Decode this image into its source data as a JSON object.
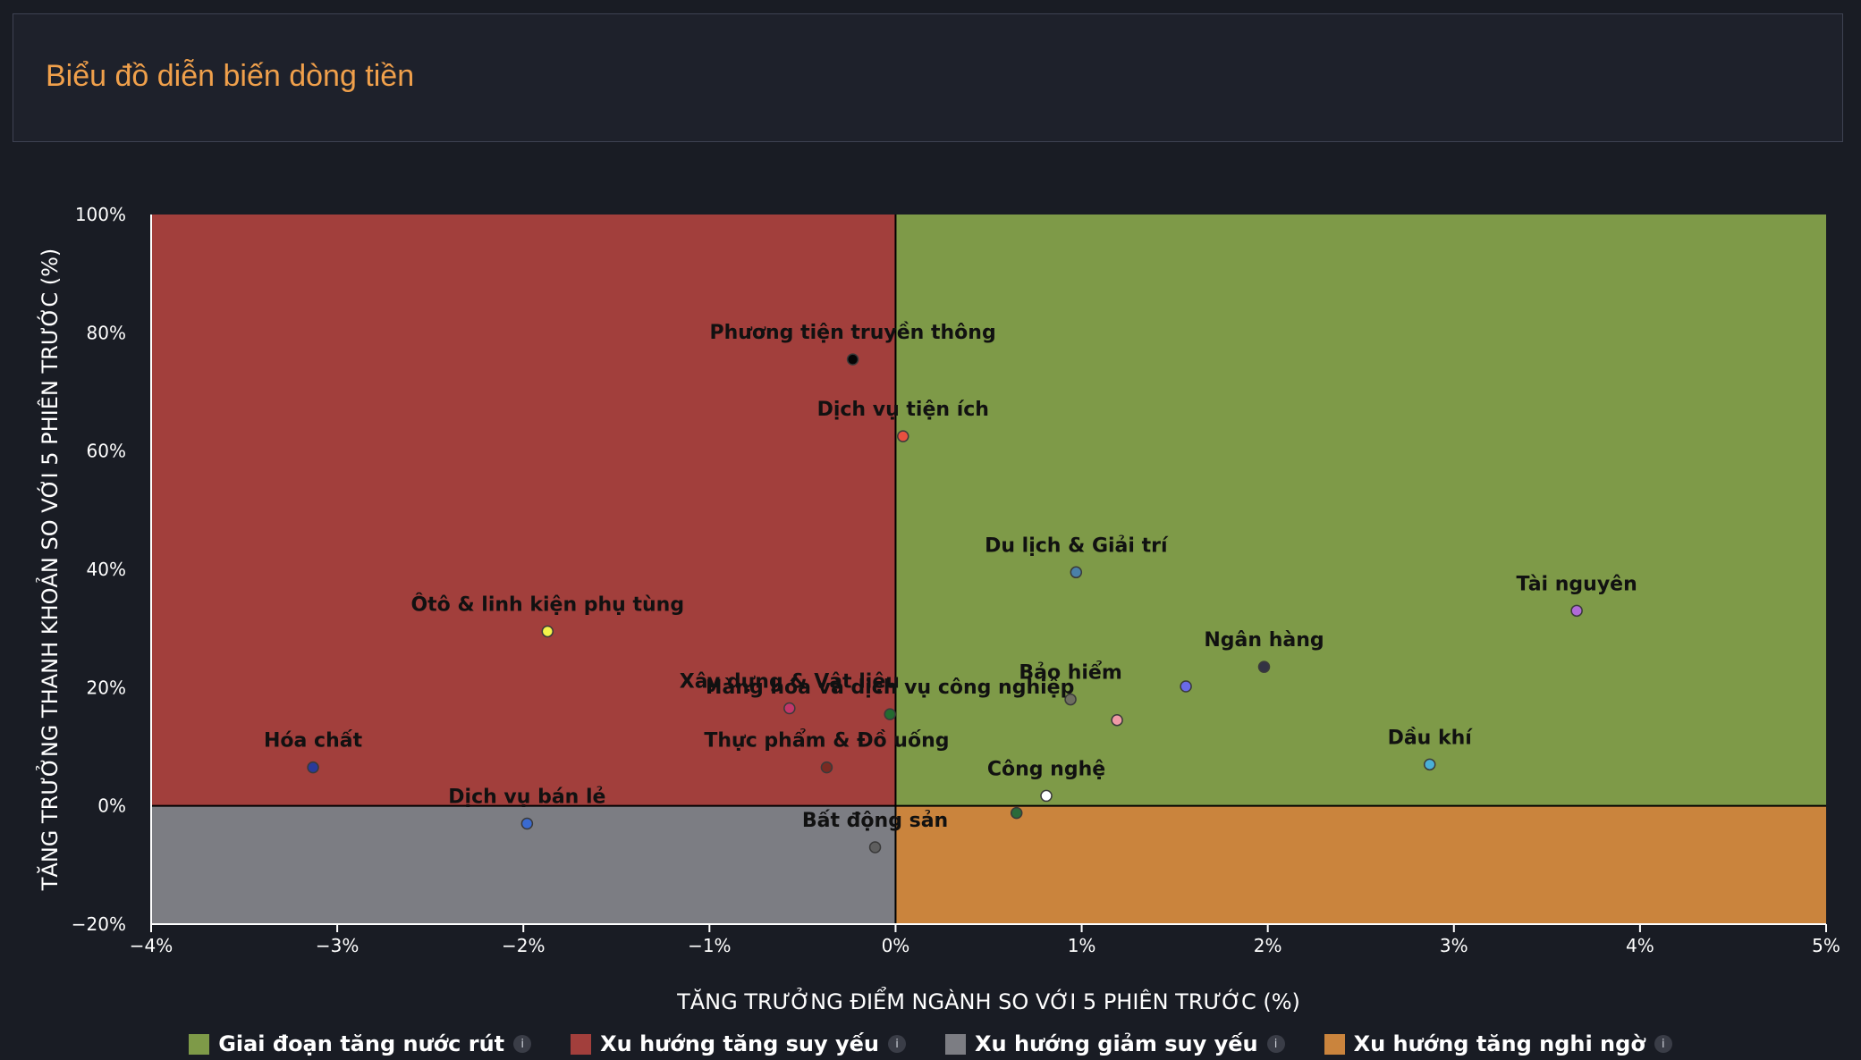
{
  "header": {
    "title": "Biểu đồ diễn biến dòng tiền"
  },
  "chart_data": {
    "type": "scatter",
    "title": "",
    "xlabel": "TĂNG TRƯỞNG ĐIỂM NGÀNH SO VỚI 5 PHIÊN TRƯỚC (%)",
    "ylabel": "TĂNG TRƯỞNG THANH KHOẢN SO VỚI 5 PHIÊN TRƯỚC (%)",
    "xlim": [
      -4,
      5
    ],
    "ylim": [
      -20,
      100
    ],
    "x_ticks": [
      -4,
      -3,
      -2,
      -1,
      0,
      1,
      2,
      3,
      4,
      5
    ],
    "x_tick_labels": [
      "−4%",
      "−3%",
      "−2%",
      "−1%",
      "0%",
      "1%",
      "2%",
      "3%",
      "4%",
      "5%"
    ],
    "y_ticks": [
      -20,
      0,
      20,
      40,
      60,
      80,
      100
    ],
    "y_tick_labels": [
      "−20%",
      "0%",
      "20%",
      "40%",
      "60%",
      "80%",
      "100%"
    ],
    "quadrants": [
      {
        "name": "Giai đoạn tăng nước rút",
        "color": "#7e9a48",
        "x_sign": "positive",
        "y_sign": "positive"
      },
      {
        "name": "Xu hướng tăng suy yếu",
        "color": "#a23f3c",
        "x_sign": "negative",
        "y_sign": "positive"
      },
      {
        "name": "Xu hướng giảm suy yếu",
        "color": "#7c7d83",
        "x_sign": "negative",
        "y_sign": "negative"
      },
      {
        "name": "Xu hướng tăng nghi ngờ",
        "color": "#ca843d",
        "x_sign": "positive",
        "y_sign": "negative"
      }
    ],
    "points": [
      {
        "label": "Phương tiện truyền thông",
        "x": -0.23,
        "y": 75.5,
        "color": "#050505"
      },
      {
        "label": "Dịch vụ tiện ích",
        "x": 0.04,
        "y": 62.5,
        "color": "#e85040"
      },
      {
        "label": "Du lịch & Giải trí",
        "x": 0.97,
        "y": 39.5,
        "color": "#4a80a8"
      },
      {
        "label": "Tài nguyên",
        "x": 3.66,
        "y": 33,
        "color": "#b06ad8"
      },
      {
        "label": "Ôtô & linh kiện phụ tùng",
        "x": -1.87,
        "y": 29.5,
        "color": "#f4f44a"
      },
      {
        "label": "Ngân hàng",
        "x": 1.98,
        "y": 23.5,
        "color": "#333344"
      },
      {
        "label": "Bảo hiểm",
        "x": 0.94,
        "y": 18,
        "color": "#6e6e60"
      },
      {
        "label": "",
        "x": 1.56,
        "y": 20.2,
        "color": "#6a6ae8"
      },
      {
        "label": "",
        "x": 1.19,
        "y": 14.5,
        "color": "#f09aa6"
      },
      {
        "label": "Xây dựng & Vật liệu",
        "x": -0.57,
        "y": 16.5,
        "color": "#c2366a"
      },
      {
        "label": "Hàng hóa và dịch vụ công nghiệp",
        "x": -0.03,
        "y": 15.5,
        "color": "#246a30"
      },
      {
        "label": "Thực phẩm & Đồ uống",
        "x": -0.37,
        "y": 6.5,
        "color": "#7a2a22"
      },
      {
        "label": "Hóa chất",
        "x": -3.13,
        "y": 6.5,
        "color": "#2a3a9a"
      },
      {
        "label": "Dầu khí",
        "x": 2.87,
        "y": 7,
        "color": "#4ab0d8"
      },
      {
        "label": "Công nghệ",
        "x": 0.81,
        "y": 1.7,
        "color": "#ffffff"
      },
      {
        "label": "Dịch vụ bán lẻ",
        "x": -1.98,
        "y": -3,
        "color": "#3a6ad0"
      },
      {
        "label": "",
        "x": 0.65,
        "y": -1.2,
        "color": "#2a6a3a"
      },
      {
        "label": "Bất động sản",
        "x": -0.11,
        "y": -7,
        "color": "#5e5e5e"
      }
    ],
    "legend_position": "bottom-center",
    "grid": false
  },
  "legend": {
    "items": [
      {
        "label": "Giai đoạn tăng nước rút",
        "color": "#7e9a48",
        "info": "i"
      },
      {
        "label": "Xu hướng tăng suy yếu",
        "color": "#a23f3c",
        "info": "i"
      },
      {
        "label": "Xu hướng giảm suy yếu",
        "color": "#7c7d83",
        "info": "i"
      },
      {
        "label": "Xu hướng tăng nghi ngờ",
        "color": "#ca843d",
        "info": "i"
      }
    ]
  }
}
